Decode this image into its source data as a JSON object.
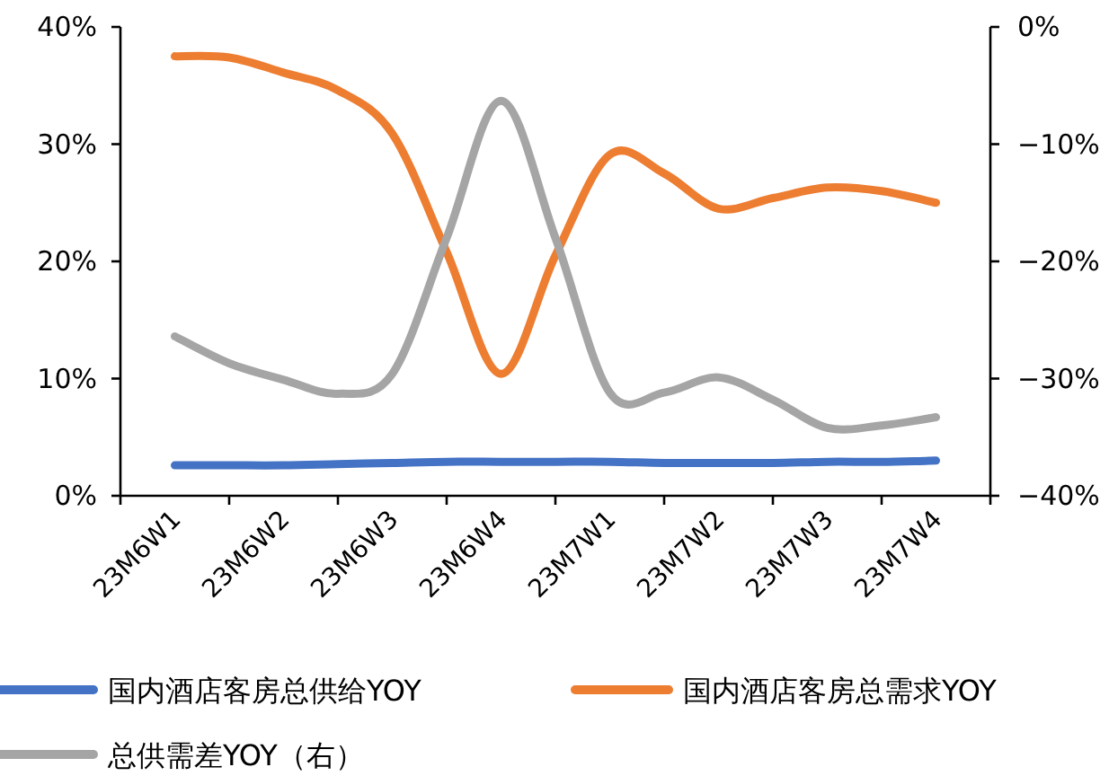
{
  "chart_data": {
    "type": "line",
    "categories": [
      "23M6W1",
      null,
      "23M6W2",
      null,
      "23M6W3",
      null,
      "23M6W4",
      null,
      "23M7W1",
      null,
      "23M7W2",
      null,
      "23M7W3",
      null,
      "23M7W4"
    ],
    "series": [
      {
        "name": "国内酒店客房总供给YOY",
        "color": "#4472c4",
        "values": [
          2.6,
          2.6,
          2.6,
          2.7,
          2.8,
          2.9,
          2.9,
          2.9,
          2.9,
          2.8,
          2.8,
          2.8,
          2.9,
          2.9,
          3.0
        ]
      },
      {
        "name": "国内酒店客房总需求YOY",
        "color": "#ed7d31",
        "values": [
          37.5,
          37.4,
          36.1,
          34.6,
          30.9,
          20.8,
          10.4,
          20.5,
          29.1,
          27.5,
          24.5,
          25.4,
          26.3,
          26.0,
          25.0
        ]
      },
      {
        "name": "总供需差YOY（右）",
        "color": "#a5a5a5",
        "axis": "y2",
        "values": [
          -26.4,
          -28.7,
          -30.1,
          -31.3,
          -29.6,
          -18.0,
          -6.3,
          -18.0,
          -31.2,
          -31.2,
          -29.9,
          -31.8,
          -34.2,
          -34.0,
          -33.3
        ]
      }
    ],
    "ylim": [
      0,
      40
    ],
    "yticks": [
      {
        "value": 0,
        "label": "0%"
      },
      {
        "value": 10,
        "label": "10%"
      },
      {
        "value": 20,
        "label": "20%"
      },
      {
        "value": 30,
        "label": "30%"
      },
      {
        "value": 40,
        "label": "40%"
      }
    ],
    "y2lim": [
      -40,
      0
    ],
    "y2ticks": [
      {
        "value": -40,
        "label": "−40%"
      },
      {
        "value": -30,
        "label": "−30%"
      },
      {
        "value": -20,
        "label": "−20%"
      },
      {
        "value": -10,
        "label": "−10%"
      },
      {
        "value": 0,
        "label": "0%"
      }
    ],
    "legend": "bottom",
    "grid": false,
    "marker": "none",
    "line_style": "solid"
  }
}
